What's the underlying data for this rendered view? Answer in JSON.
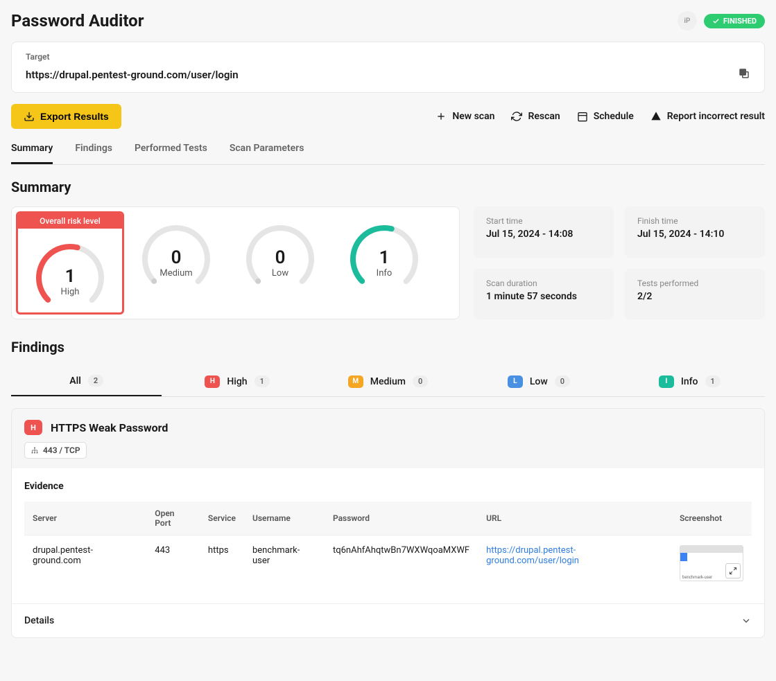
{
  "header": {
    "title": "Password Auditor",
    "ip_badge": "iP",
    "status": "FINISHED"
  },
  "target": {
    "label": "Target",
    "url": "https://drupal.pentest-ground.com/user/login"
  },
  "actions": {
    "export": "Export Results",
    "new_scan": "New scan",
    "rescan": "Rescan",
    "schedule": "Schedule",
    "report": "Report incorrect result"
  },
  "tabs": [
    "Summary",
    "Findings",
    "Performed Tests",
    "Scan Parameters"
  ],
  "summary": {
    "heading": "Summary",
    "risk_label": "Overall risk level",
    "gauges": [
      {
        "count": "1",
        "label": "High",
        "color": "#ef5350",
        "fill": 0.55
      },
      {
        "count": "0",
        "label": "Medium",
        "color": "#cfcfcf",
        "fill": 0.0
      },
      {
        "count": "0",
        "label": "Low",
        "color": "#cfcfcf",
        "fill": 0.0
      },
      {
        "count": "1",
        "label": "Info",
        "color": "#1abc9c",
        "fill": 0.55
      }
    ],
    "meta": {
      "start_label": "Start time",
      "start_value": "Jul 15, 2024 - 14:08",
      "finish_label": "Finish time",
      "finish_value": "Jul 15, 2024 - 14:10",
      "duration_label": "Scan duration",
      "duration_value": "1 minute 57 seconds",
      "tests_label": "Tests performed",
      "tests_value": "2/2"
    }
  },
  "findings": {
    "heading": "Findings",
    "filters": [
      {
        "label": "All",
        "count": "2",
        "sev": ""
      },
      {
        "label": "High",
        "count": "1",
        "sev": "h"
      },
      {
        "label": "Medium",
        "count": "0",
        "sev": "m"
      },
      {
        "label": "Low",
        "count": "0",
        "sev": "l"
      },
      {
        "label": "Info",
        "count": "1",
        "sev": "i"
      }
    ],
    "item": {
      "sev_letter": "H",
      "title": "HTTPS Weak Password",
      "port": "443 / TCP",
      "evidence_label": "Evidence",
      "columns": [
        "Server",
        "Open Port",
        "Service",
        "Username",
        "Password",
        "URL",
        "Screenshot"
      ],
      "row": {
        "server": "drupal.pentest-ground.com",
        "open_port": "443",
        "service": "https",
        "username": "benchmark-user",
        "password": "tq6nAhfAhqtwBn7WXWqoaMXWF",
        "url": "https://drupal.pentest-ground.com/user/login",
        "shot_label": "benchmark-user"
      },
      "details_label": "Details"
    }
  },
  "colors": {
    "high": "#ef5350",
    "medium": "#f5a623",
    "low": "#4a90e2",
    "info": "#1abc9c",
    "accent": "#f5c518",
    "status": "#2ecc71"
  }
}
